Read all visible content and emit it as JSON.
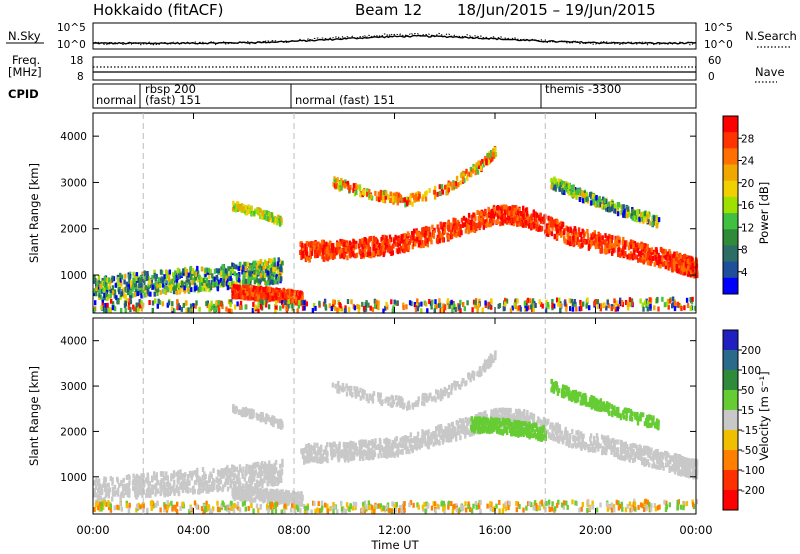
{
  "header": {
    "station": "Hokkaido (fitACF)",
    "beam": "Beam 12",
    "date_range": "18/Jun/2015 – 19/Jun/2015"
  },
  "left_labels": {
    "nsky": "N.Sky",
    "freq_line1": "Freq.",
    "freq_line2": "[MHz]",
    "cpid": "CPID"
  },
  "right_labels": {
    "nsearch": "N.Search",
    "nave": "Nave"
  },
  "noise_panel": {
    "left_ticks": [
      "10^5",
      "10^0"
    ],
    "right_ticks": [
      "10^5",
      "10^0"
    ]
  },
  "freq_panel": {
    "left_ticks": [
      "18",
      "8"
    ],
    "right_ticks": [
      "60",
      "0"
    ]
  },
  "cpid_panel": {
    "segments": [
      {
        "label": "normal",
        "start_h": 0,
        "end_h": 2
      },
      {
        "label": "rbsp 200",
        "start_h": 2,
        "end_h": 8
      },
      {
        "label": "(fast) 151",
        "start_h": 2,
        "end_h": 8
      },
      {
        "label": "normal (fast) 151",
        "start_h": 8,
        "end_h": 18
      },
      {
        "label": "themis -3300",
        "start_h": 18,
        "end_h": 24
      }
    ]
  },
  "chart_data": [
    {
      "type": "heatmap",
      "xlabel": "Time UT",
      "ylabel": "Slant Range [km]",
      "x_ticks": [
        "00:00",
        "04:00",
        "08:00",
        "12:00",
        "16:00",
        "20:00",
        "00:00"
      ],
      "x_tick_hours": [
        0,
        4,
        8,
        12,
        16,
        20,
        24
      ],
      "y_ticks": [
        1000,
        2000,
        3000,
        4000
      ],
      "ylim": [
        180,
        4500
      ],
      "xlim": [
        0,
        24
      ],
      "colorbar": {
        "label": "Power [dB]",
        "ticks": [
          "28",
          "24",
          "20",
          "16",
          "12",
          "8",
          "4"
        ],
        "colors": [
          "#ff0000",
          "#ff3300",
          "#ff7000",
          "#f0a800",
          "#f0d000",
          "#9ee000",
          "#40c040",
          "#2f8a3a",
          "#2c6e66",
          "#1f4e9a",
          "#0000ff"
        ]
      }
    },
    {
      "type": "heatmap",
      "xlabel": "Time UT",
      "ylabel": "Slant Range [km]",
      "x_ticks": [
        "00:00",
        "04:00",
        "08:00",
        "12:00",
        "16:00",
        "20:00",
        "00:00"
      ],
      "x_tick_hours": [
        0,
        4,
        8,
        12,
        16,
        20,
        24
      ],
      "y_ticks": [
        1000,
        2000,
        3000,
        4000
      ],
      "ylim": [
        180,
        4500
      ],
      "xlim": [
        0,
        24
      ],
      "colorbar": {
        "label": "Velocity [m s⁻¹]",
        "ticks": [
          "200",
          "100",
          "50",
          "15",
          "-15",
          "-50",
          "-100",
          "-200"
        ],
        "colors": [
          "#2020c0",
          "#2a6a8a",
          "#2f8a3a",
          "#66cc33",
          "#c8c8c8",
          "#f0c000",
          "#ff8000",
          "#ff3000",
          "#ff0000"
        ]
      }
    }
  ]
}
